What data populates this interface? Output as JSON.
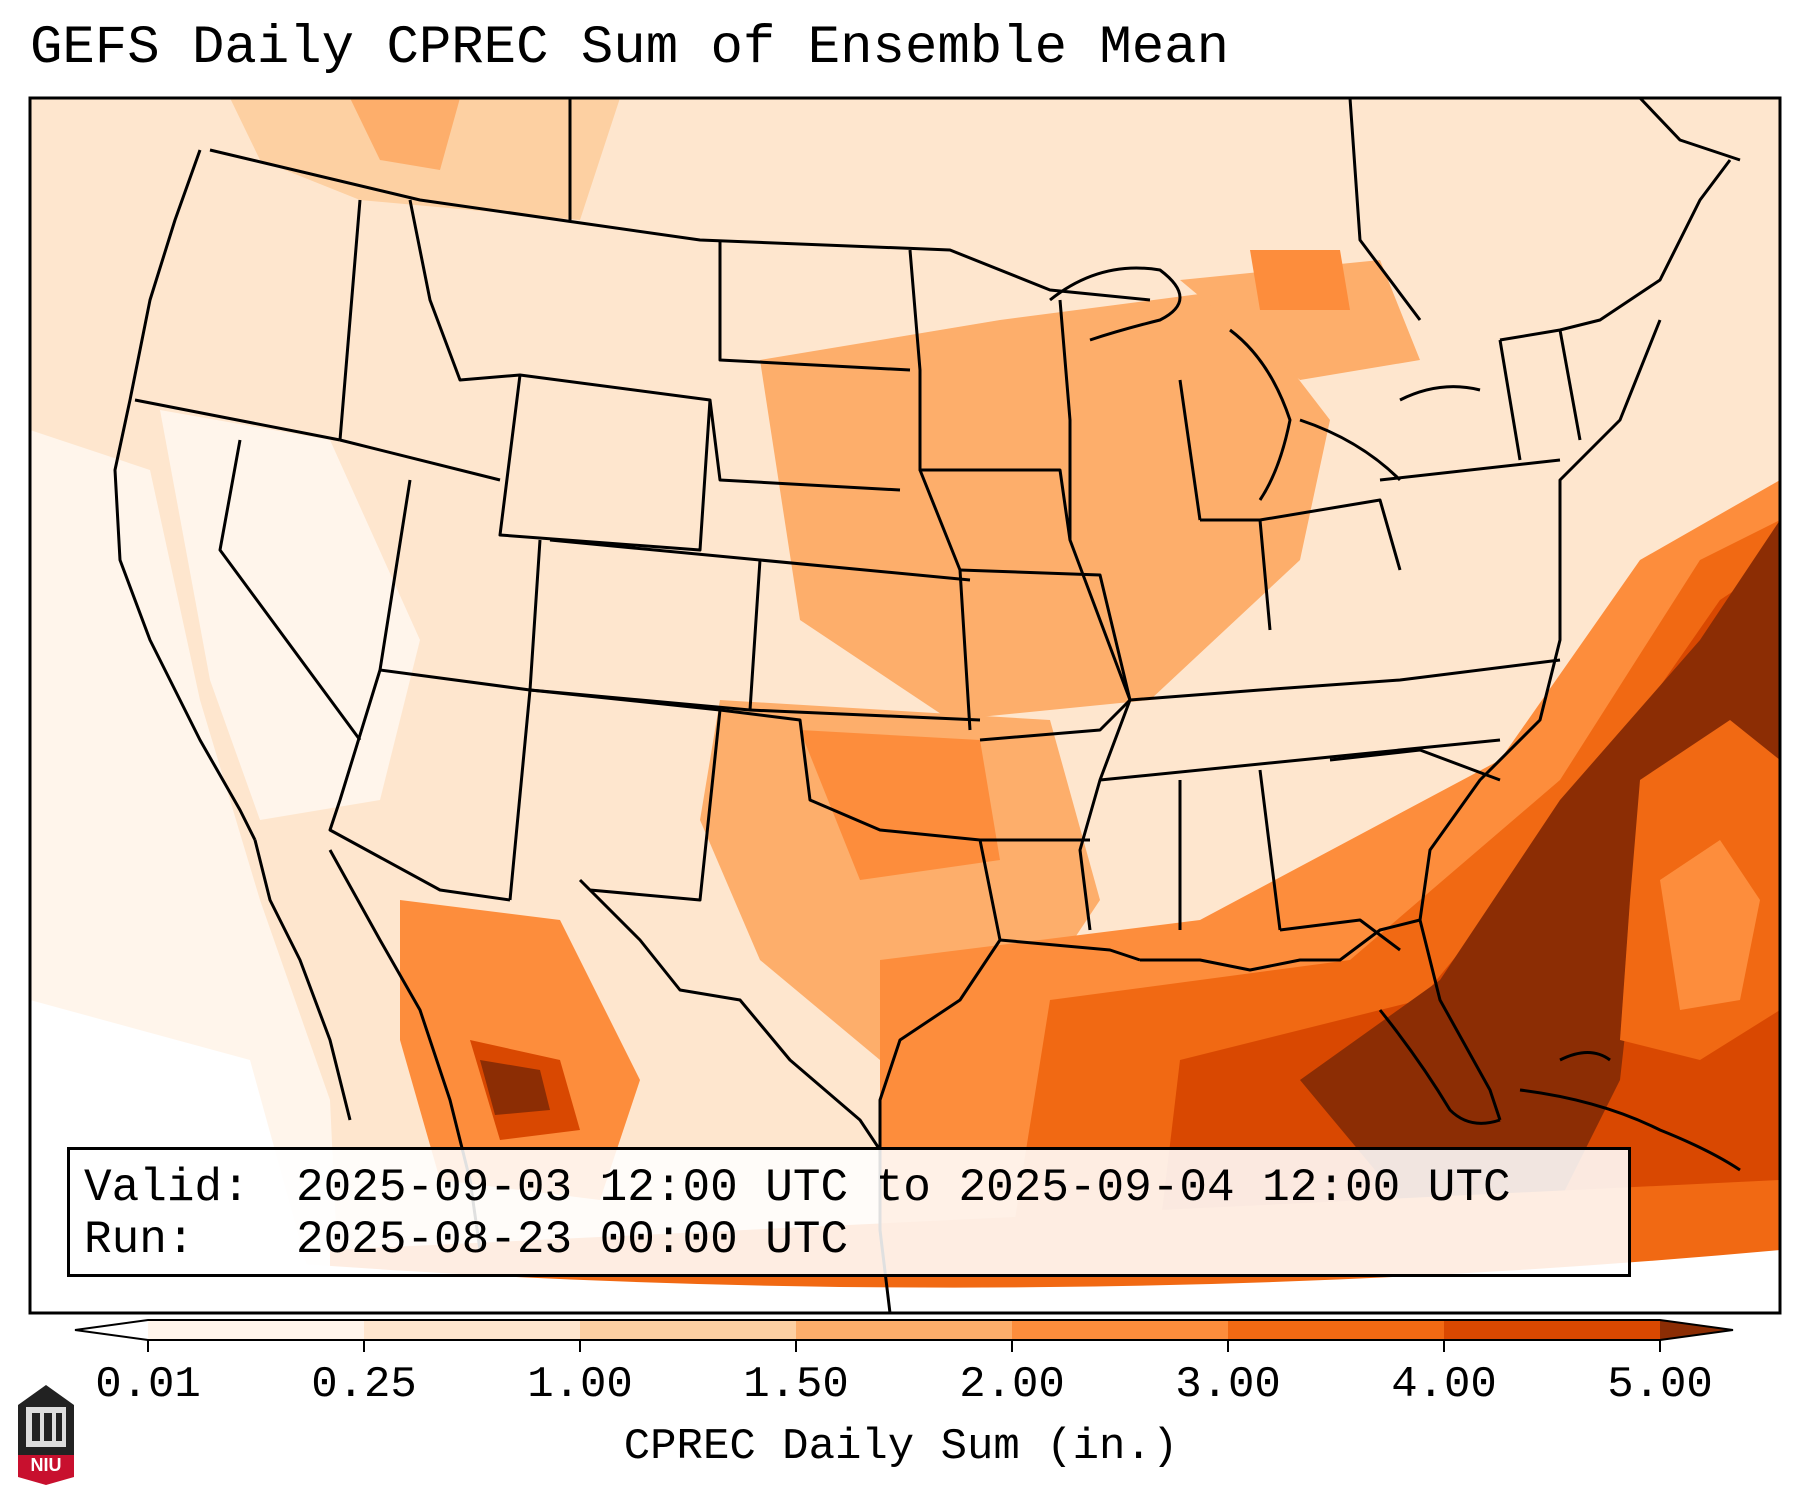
{
  "title": "GEFS Daily CPREC Sum of Ensemble Mean",
  "info": {
    "valid_label": "Valid:",
    "valid_value": "2025-09-03 12:00 UTC to 2025-09-04 12:00 UTC",
    "run_label": "Run:",
    "run_value": "2025-08-23 00:00 UTC"
  },
  "colorbar": {
    "title": "CPREC Daily Sum (in.)",
    "ticks": [
      "0.01",
      "0.25",
      "1.00",
      "1.50",
      "2.00",
      "3.00",
      "4.00",
      "5.00"
    ],
    "colors": [
      "#fff5eb",
      "#fee6ce",
      "#fdd0a2",
      "#fdae6b",
      "#fd8d3c",
      "#f16913",
      "#d94801",
      "#8c2d04"
    ]
  },
  "logo": {
    "text": "NIU",
    "icon": "niu-building-icon"
  },
  "map": {
    "region": "Contiguous United States",
    "heavy_rain_area": "Southeast coast and western Atlantic"
  }
}
